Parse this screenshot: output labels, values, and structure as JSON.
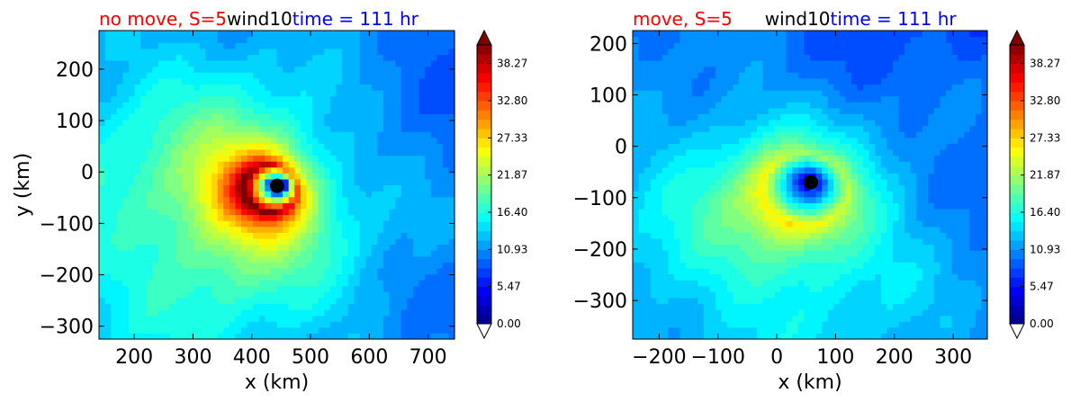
{
  "chart_data": [
    {
      "type": "heatmap",
      "title_parts": [
        {
          "text": "no move, S=5",
          "color": "#ff0000"
        },
        {
          "text": "wind10",
          "color": "#000000"
        },
        {
          "text": "time = 111 hr",
          "color": "#0000ff"
        }
      ],
      "xlabel": "x (km)",
      "ylabel": "y (km)",
      "xlim": [
        140,
        745
      ],
      "ylim": [
        -325,
        275
      ],
      "xticks": [
        200,
        300,
        400,
        500,
        600,
        700
      ],
      "yticks": [
        -300,
        -200,
        -100,
        0,
        100,
        200
      ],
      "center_marker": {
        "x": 443,
        "y": -27
      },
      "storm": {
        "peak": 38,
        "radius_km": 45,
        "bg": 7.5,
        "asym_dir_deg": 200,
        "eye_km": 18
      },
      "colorbar": {
        "ticks": [
          0.0,
          5.47,
          10.93,
          16.4,
          21.87,
          27.33,
          32.8,
          38.27
        ],
        "vmin": 0,
        "vmax": 41,
        "extend": "both"
      }
    },
    {
      "type": "heatmap",
      "title_parts": [
        {
          "text": "move, S=5",
          "color": "#ff0000"
        },
        {
          "text": "wind10",
          "color": "#000000"
        },
        {
          "text": "time = 111 hr",
          "color": "#0000ff"
        }
      ],
      "xlabel": "x (km)",
      "ylabel": "",
      "xlim": [
        -245,
        358
      ],
      "ylim": [
        -375,
        225
      ],
      "xticks": [
        -200,
        -100,
        0,
        100,
        200,
        300
      ],
      "yticks": [
        -300,
        -200,
        -100,
        0,
        100,
        200
      ],
      "center_marker": {
        "x": 58,
        "y": -70
      },
      "storm": {
        "peak": 24,
        "radius_km": 70,
        "bg": 7.0,
        "asym_dir_deg": 235,
        "eye_km": 12
      },
      "colorbar": {
        "ticks": [
          0.0,
          5.47,
          10.93,
          16.4,
          21.87,
          27.33,
          32.8,
          38.27
        ],
        "vmin": 0,
        "vmax": 41,
        "extend": "both"
      }
    }
  ]
}
